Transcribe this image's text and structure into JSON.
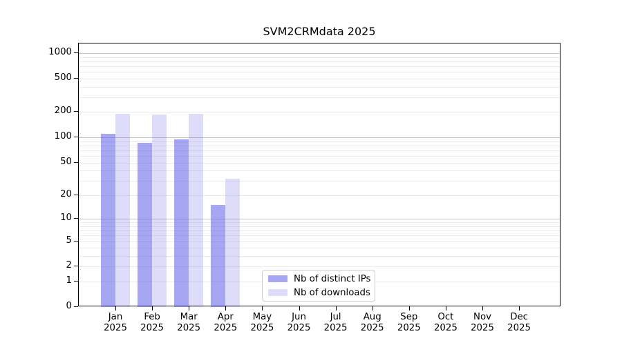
{
  "chart_data": {
    "type": "bar",
    "title": "SVM2CRMdata 2025",
    "scale": "log10(1+x)",
    "months": [
      "Jan",
      "Feb",
      "Mar",
      "Apr",
      "May",
      "Jun",
      "Jul",
      "Aug",
      "Sep",
      "Oct",
      "Nov",
      "Dec"
    ],
    "year": "2025",
    "series": [
      {
        "name": "Nb of distinct IPs",
        "color": "rgba(84,84,230,0.52)",
        "values": [
          110,
          86,
          95,
          15,
          0,
          0,
          0,
          0,
          0,
          0,
          0,
          0
        ]
      },
      {
        "name": "Nb of downloads",
        "color": "rgba(84,84,230,0.20)",
        "values": [
          190,
          186,
          190,
          32,
          0,
          0,
          0,
          0,
          0,
          0,
          0,
          0
        ]
      }
    ],
    "y_ticks": [
      1000,
      500,
      200,
      100,
      50,
      20,
      10,
      5,
      2,
      1,
      0
    ],
    "ylim": [
      0,
      1300
    ],
    "grid": true,
    "grid_major_color": "#c4c4c4",
    "grid_minor_color": "#ebebeb",
    "legend_position": "inside-bottom-center"
  }
}
